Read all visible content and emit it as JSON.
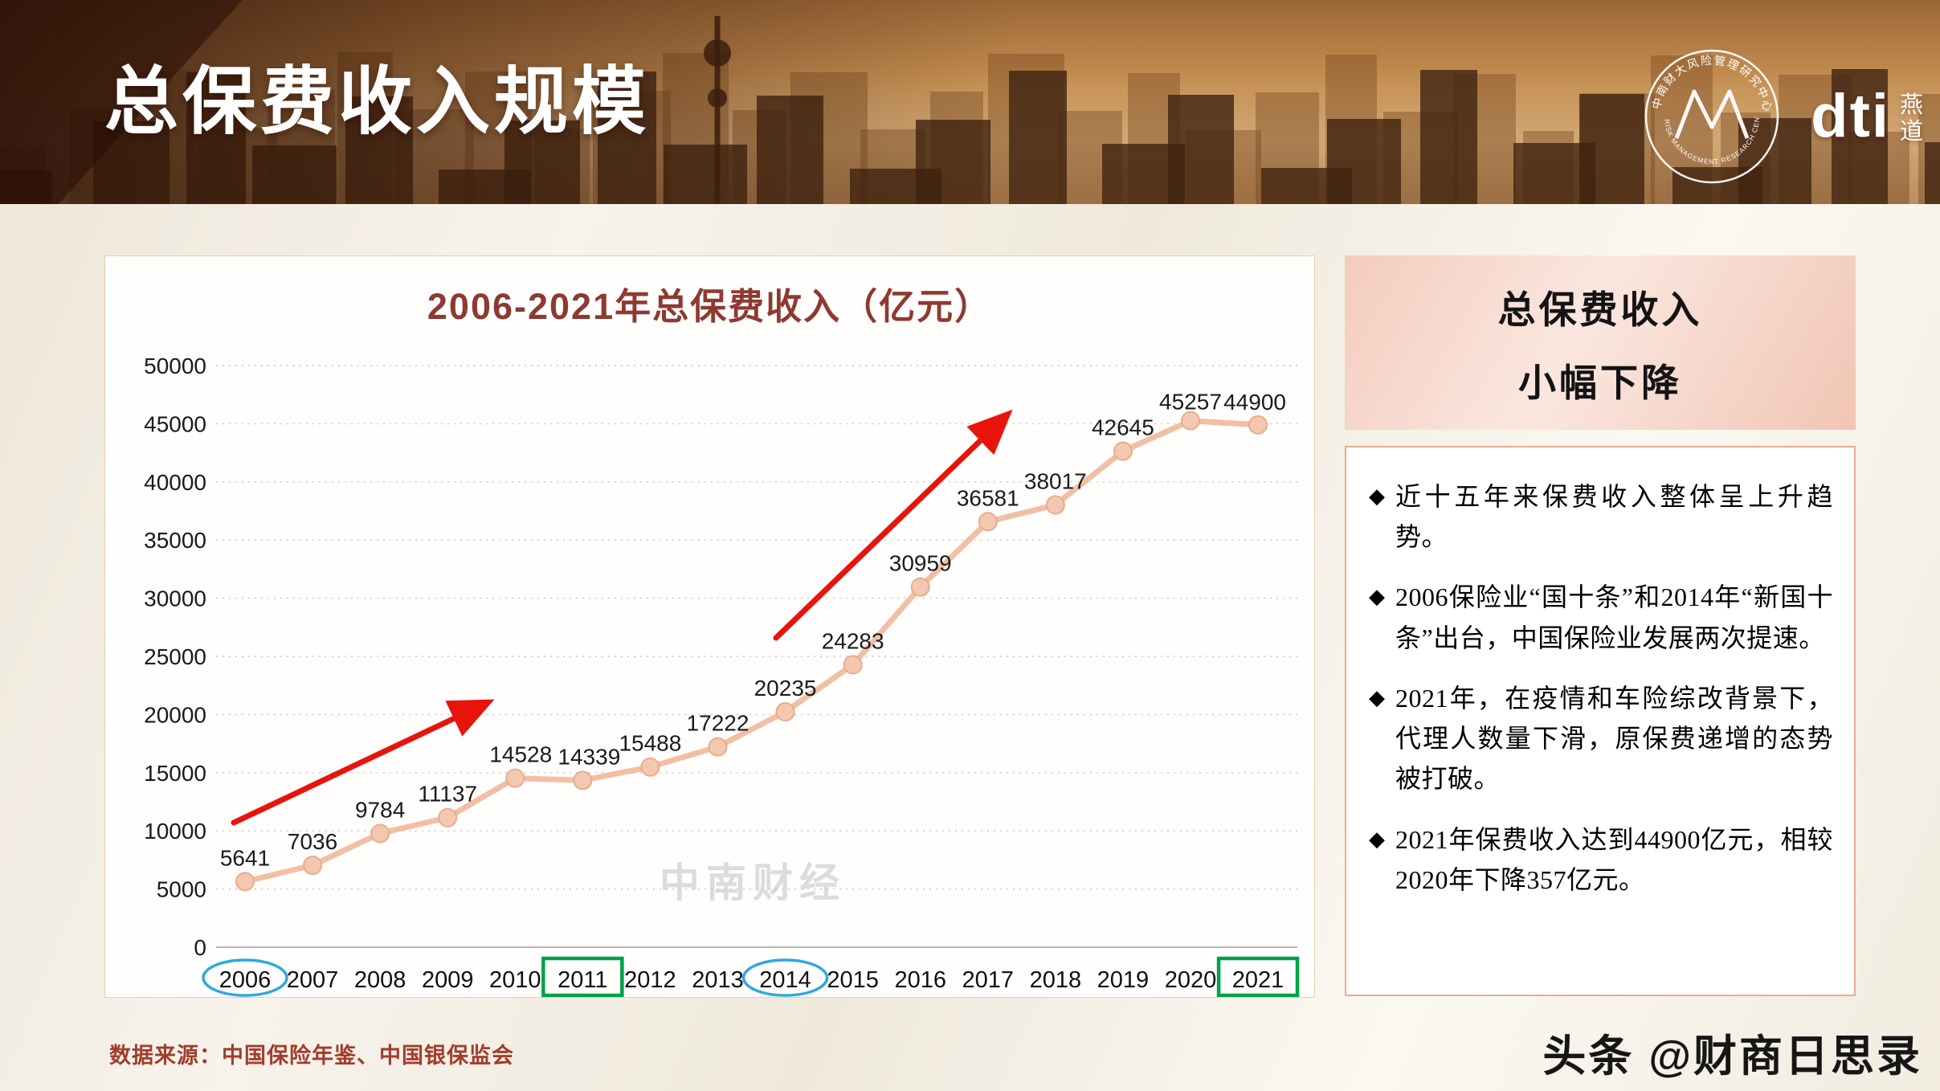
{
  "header": {
    "title": "总保费收入规模",
    "logo": {
      "ring_text_top": "中南财大风险管理研究中心",
      "ring_text_bottom": "RISK MANAGEMENT RESEARCH CENTER"
    },
    "brand": "dti",
    "brand_vertical": "燕道"
  },
  "chart_data": {
    "type": "line",
    "title": "2006-2021年总保费收入（亿元）",
    "categories": [
      "2006",
      "2007",
      "2008",
      "2009",
      "2010",
      "2011",
      "2012",
      "2013",
      "2014",
      "2015",
      "2016",
      "2017",
      "2018",
      "2019",
      "2020",
      "2021"
    ],
    "values": [
      5641,
      7036,
      9784,
      11137,
      14528,
      14339,
      15488,
      17222,
      20235,
      24283,
      30959,
      36581,
      38017,
      42645,
      45257,
      44900
    ],
    "ylim": [
      0,
      50000
    ],
    "yticks": [
      0,
      5000,
      10000,
      15000,
      20000,
      25000,
      30000,
      35000,
      40000,
      45000,
      50000
    ],
    "grid": true,
    "legend": false,
    "series_color": "#f2bfa4",
    "marker_color": "#f4c8b0",
    "marker_edge_color": "#e9ab8d",
    "annotation_arrow_color": "#e8140c",
    "highlights": [
      {
        "category": "2006",
        "shape": "ellipse",
        "color": "#2ea8e0"
      },
      {
        "category": "2011",
        "shape": "rect",
        "color": "#00a14b"
      },
      {
        "category": "2014",
        "shape": "ellipse",
        "color": "#2ea8e0"
      },
      {
        "category": "2021",
        "shape": "rect",
        "color": "#00a14b"
      }
    ],
    "watermark": "中南财经"
  },
  "side_panel": {
    "title_lines": [
      "总保费收入",
      "小幅下降"
    ],
    "bullet_icon": "◆",
    "bullets": [
      "近十五年来保费收入整体呈上升趋势。",
      "2006保险业“国十条”和2014年“新国十条”出台，中国保险业发展两次提速。",
      "2021年，在疫情和车险综改背景下，代理人数量下滑，原保费递增的态势被打破。",
      "2021年保费收入达到44900亿元，相较2020年下降357亿元。"
    ]
  },
  "footer": {
    "source": "数据来源：中国保险年鉴、中国银保监会",
    "byline": "头条 @财商日思录"
  }
}
